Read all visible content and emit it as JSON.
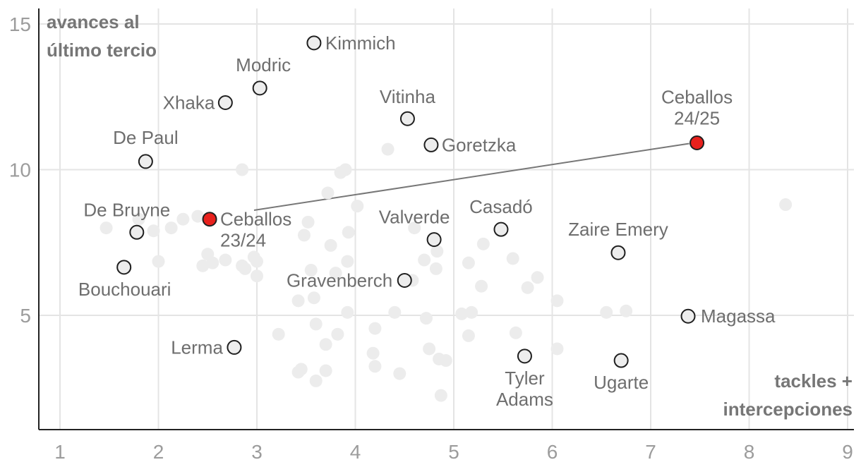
{
  "chart_data": {
    "type": "scatter",
    "ylabel_lines": [
      "avances al",
      "último tercio"
    ],
    "xlabel_lines": [
      "tackles +",
      "intercepciones"
    ],
    "xlim": [
      0.8,
      9.1
    ],
    "ylim": [
      1.0,
      15.6
    ],
    "x_ticks": [
      "1",
      "2",
      "3",
      "4",
      "5",
      "6",
      "7",
      "8",
      "9"
    ],
    "y_ticks": [
      "5",
      "10",
      "15"
    ],
    "grid": true,
    "colors": {
      "background_points": "#ececec",
      "highlight_points": "#ededed",
      "ceballos": "#e8211d",
      "connector": "#777777"
    },
    "background_points": [
      [
        1.47,
        8.0
      ],
      [
        1.8,
        8.3
      ],
      [
        1.95,
        7.9
      ],
      [
        2.0,
        6.85
      ],
      [
        2.13,
        8.0
      ],
      [
        2.25,
        8.3
      ],
      [
        2.4,
        8.4
      ],
      [
        2.45,
        6.7
      ],
      [
        2.55,
        6.8
      ],
      [
        2.5,
        7.1
      ],
      [
        2.68,
        6.9
      ],
      [
        2.85,
        10.0
      ],
      [
        2.85,
        6.7
      ],
      [
        2.88,
        6.6
      ],
      [
        2.97,
        7.0
      ],
      [
        3.0,
        6.85
      ],
      [
        3.0,
        6.35
      ],
      [
        3.22,
        4.35
      ],
      [
        3.42,
        5.5
      ],
      [
        3.42,
        3.05
      ],
      [
        3.45,
        3.15
      ],
      [
        3.48,
        7.75
      ],
      [
        3.52,
        8.2
      ],
      [
        3.55,
        6.55
      ],
      [
        3.58,
        5.6
      ],
      [
        3.6,
        4.7
      ],
      [
        3.6,
        2.75
      ],
      [
        3.7,
        3.1
      ],
      [
        3.7,
        4.0
      ],
      [
        3.72,
        9.2
      ],
      [
        3.75,
        7.4
      ],
      [
        3.8,
        6.45
      ],
      [
        3.82,
        4.35
      ],
      [
        3.85,
        9.9
      ],
      [
        3.9,
        10.0
      ],
      [
        3.92,
        6.85
      ],
      [
        3.92,
        5.1
      ],
      [
        3.93,
        7.85
      ],
      [
        4.02,
        8.75
      ],
      [
        4.18,
        3.7
      ],
      [
        4.2,
        3.25
      ],
      [
        4.2,
        4.55
      ],
      [
        4.33,
        10.7
      ],
      [
        4.4,
        5.1
      ],
      [
        4.45,
        3.0
      ],
      [
        4.58,
        6.2
      ],
      [
        4.6,
        8.0
      ],
      [
        4.7,
        6.9
      ],
      [
        4.72,
        4.9
      ],
      [
        4.75,
        3.85
      ],
      [
        4.82,
        6.6
      ],
      [
        4.83,
        7.2
      ],
      [
        4.85,
        3.5
      ],
      [
        4.87,
        2.25
      ],
      [
        4.92,
        3.45
      ],
      [
        5.08,
        5.05
      ],
      [
        5.15,
        6.8
      ],
      [
        5.15,
        4.3
      ],
      [
        5.18,
        5.1
      ],
      [
        5.28,
        6.0
      ],
      [
        5.3,
        7.45
      ],
      [
        5.6,
        6.95
      ],
      [
        5.63,
        4.4
      ],
      [
        5.75,
        5.95
      ],
      [
        5.85,
        6.3
      ],
      [
        6.05,
        3.85
      ],
      [
        6.05,
        5.5
      ],
      [
        6.55,
        5.1
      ],
      [
        6.75,
        5.15
      ],
      [
        8.37,
        8.8
      ]
    ],
    "points": [
      {
        "label": "Kimmich",
        "x": 3.58,
        "y": 14.35
      },
      {
        "label": "Modric",
        "x": 3.03,
        "y": 12.8
      },
      {
        "label": "Xhaka",
        "x": 2.68,
        "y": 12.3
      },
      {
        "label": "Vitinha",
        "x": 4.53,
        "y": 11.75
      },
      {
        "label": "Goretzka",
        "x": 4.77,
        "y": 10.85
      },
      {
        "label": "De Paul",
        "x": 1.87,
        "y": 10.28
      },
      {
        "label": "De Bruyne",
        "x": 1.78,
        "y": 7.85
      },
      {
        "label": "Valverde",
        "x": 4.8,
        "y": 7.6
      },
      {
        "label": "Casadó",
        "x": 5.48,
        "y": 7.95
      },
      {
        "label": "Zaire Emery",
        "x": 6.67,
        "y": 7.15
      },
      {
        "label": "Bouchouari",
        "x": 1.65,
        "y": 6.65
      },
      {
        "label": "Gravenberch",
        "x": 4.5,
        "y": 6.2
      },
      {
        "label": "Magassa",
        "x": 7.38,
        "y": 4.97
      },
      {
        "label": "Lerma",
        "x": 2.77,
        "y": 3.9
      },
      {
        "label": "Tyler Adams",
        "x": 5.72,
        "y": 3.6
      },
      {
        "label": "Ugarte",
        "x": 6.7,
        "y": 3.45
      }
    ],
    "ceballos": [
      {
        "label": "Ceballos 23/24",
        "x": 2.52,
        "y": 8.3
      },
      {
        "label": "Ceballos 24/25",
        "x": 7.47,
        "y": 10.92
      }
    ]
  }
}
